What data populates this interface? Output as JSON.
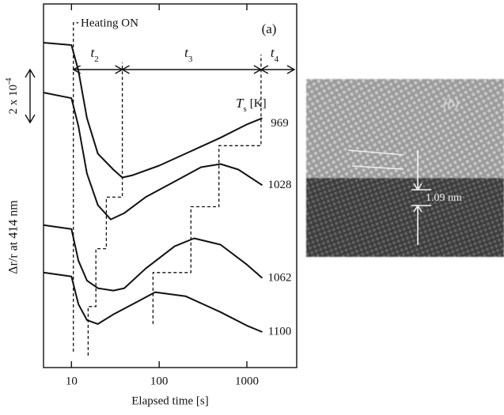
{
  "chart_data": {
    "type": "line",
    "title": "(a)",
    "xlabel": "Elapsed time  [s]",
    "ylabel": "Δr/r  at 414 nm",
    "xlog": true,
    "xlim": [
      4.8,
      3700
    ],
    "xticks": [
      10,
      100,
      1000
    ],
    "ylim": [
      0,
      13.7
    ],
    "color": "#111111",
    "legend_title": {
      "text": "T",
      "sub": "s",
      "after": "[K]"
    },
    "scale_bar": {
      "text": "2 x 10",
      "sup": "-4",
      "value": 2
    },
    "heating_label": "Heating ON",
    "intervals": [
      {
        "text": "t",
        "sub": "2",
        "x": [
          10.5,
          38
        ]
      },
      {
        "text": "t",
        "sub": "3",
        "x": [
          38,
          1450
        ]
      },
      {
        "text": "t",
        "sub": "4",
        "x": [
          1450,
          3700
        ]
      }
    ],
    "series": [
      {
        "name": "969",
        "x": [
          4.8,
          10,
          12,
          15,
          20,
          30,
          38,
          50,
          100,
          200,
          500,
          1000,
          1500
        ],
        "values": [
          12.24,
          12.15,
          11.19,
          9.4,
          8.06,
          7.46,
          7.16,
          7.25,
          7.61,
          8.06,
          8.66,
          9.16,
          9.4
        ]
      },
      {
        "name": "1028",
        "x": [
          4.8,
          10,
          12,
          15,
          20,
          28,
          40,
          70,
          150,
          300,
          500,
          800,
          1500
        ],
        "values": [
          10.36,
          10.15,
          9.1,
          7.31,
          6.12,
          5.58,
          5.82,
          6.42,
          7.01,
          7.55,
          7.67,
          7.46,
          6.87
        ]
      },
      {
        "name": "1062",
        "x": [
          4.8,
          10,
          12,
          15,
          20,
          30,
          40,
          70,
          150,
          250,
          500,
          1000,
          1500
        ],
        "values": [
          5.37,
          5.22,
          4.03,
          3.28,
          2.99,
          2.9,
          2.99,
          3.73,
          4.57,
          4.87,
          4.63,
          3.88,
          3.37
        ]
      },
      {
        "name": "1100",
        "x": [
          4.8,
          10,
          12,
          15,
          20,
          30,
          50,
          90,
          200,
          500,
          1000,
          1500
        ],
        "values": [
          3.58,
          3.43,
          2.39,
          1.79,
          1.64,
          2.0,
          2.39,
          2.84,
          2.69,
          2.09,
          1.58,
          1.34
        ]
      }
    ],
    "dashed_lines": [
      {
        "x": [
          10.5,
          10.5,
          12
        ],
        "values": [
          0.6,
          12.99,
          12.99
        ]
      },
      {
        "x": [
          15.5,
          15.5,
          19,
          19,
          25,
          25,
          38,
          38
        ],
        "values": [
          0.45,
          2.3,
          2.3,
          4.48,
          4.48,
          6.42,
          6.42,
          11.49
        ]
      },
      {
        "x": [
          85,
          85,
          230,
          230,
          480,
          480,
          1450,
          1450
        ],
        "values": [
          1.64,
          3.58,
          3.58,
          6.06,
          6.06,
          8.36,
          8.36,
          11.79
        ]
      }
    ]
  },
  "panel_b": {
    "label": "(b)",
    "annotation": "1.09 nm"
  }
}
